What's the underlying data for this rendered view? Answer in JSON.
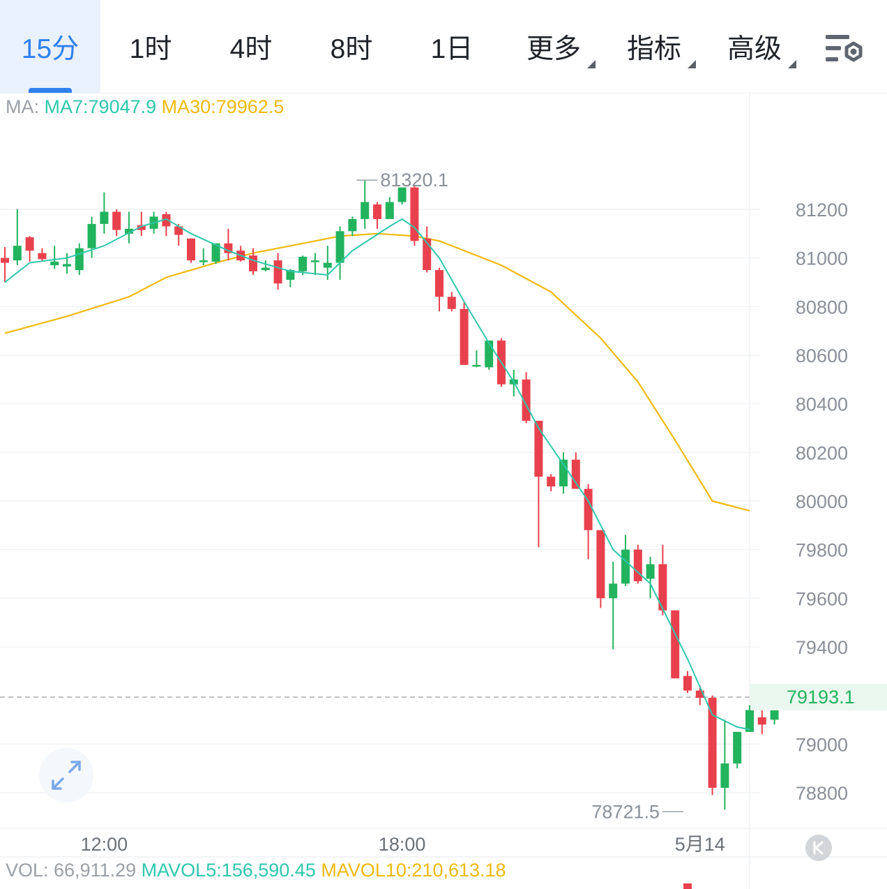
{
  "tabs": [
    {
      "label": "15分",
      "active": true
    },
    {
      "label": "1时"
    },
    {
      "label": "4时"
    },
    {
      "label": "8时"
    },
    {
      "label": "1日"
    },
    {
      "label": "更多",
      "dropdown": true
    },
    {
      "label": "指标",
      "dropdown": true
    },
    {
      "label": "高级",
      "dropdown": true
    }
  ],
  "settings_icon": "chart-settings-icon",
  "legend": {
    "prefix": "MA: ",
    "ma7": "MA7:79047.9",
    "ma30": "MA30:79962.5"
  },
  "volume_legend": {
    "vol": "VOL: 66,911.29",
    "mavol5": "MAVOL5:156,590.45",
    "mavol10": "MAVOL10:210,613.18"
  },
  "current_price": "79193.1",
  "colors": {
    "up": "#22b35e",
    "down": "#e8414d",
    "ma7": "#2ec7ac",
    "ma30": "#f0b90b",
    "accent": "#2f80ed"
  },
  "chart_data": {
    "type": "candlestick",
    "interval": "15分",
    "y_ticks": [
      81200,
      81000,
      80800,
      80600,
      80400,
      80200,
      80000,
      79800,
      79600,
      79400,
      79000,
      78800
    ],
    "ylim": [
      78650,
      81450
    ],
    "x_labels": [
      {
        "index": 8,
        "label": "12:00"
      },
      {
        "index": 32,
        "label": "18:00"
      },
      {
        "index": 56,
        "label": "5月14"
      }
    ],
    "high_marker": {
      "index": 28,
      "value": 81320.1,
      "label": "81320.1"
    },
    "low_marker": {
      "index": 55,
      "value": 78721.5,
      "label": "78721.5"
    },
    "last_price": 79193.1,
    "candles": [
      [
        81000,
        80980,
        81045,
        80900
      ],
      [
        80990,
        81050,
        81200,
        80970
      ],
      [
        81085,
        81030,
        81090,
        80985
      ],
      [
        81020,
        80995,
        81040,
        80985
      ],
      [
        80970,
        80985,
        81050,
        80955
      ],
      [
        80965,
        80975,
        81020,
        80935
      ],
      [
        80950,
        81040,
        81060,
        80930
      ],
      [
        81040,
        81140,
        81170,
        81000
      ],
      [
        81140,
        81190,
        81270,
        81100
      ],
      [
        81190,
        81115,
        81200,
        81090
      ],
      [
        81100,
        81120,
        81190,
        81060
      ],
      [
        81135,
        81115,
        81190,
        81090
      ],
      [
        81120,
        81170,
        81190,
        81100
      ],
      [
        81180,
        81130,
        81190,
        81090
      ],
      [
        81130,
        81095,
        81140,
        81050
      ],
      [
        81080,
        80990,
        81080,
        80980
      ],
      [
        80990,
        80990,
        81040,
        80970
      ],
      [
        80985,
        81060,
        81060,
        80975
      ],
      [
        81060,
        81020,
        81120,
        80990
      ],
      [
        81030,
        80990,
        81050,
        80985
      ],
      [
        81010,
        80945,
        81040,
        80930
      ],
      [
        80950,
        80960,
        80990,
        80945
      ],
      [
        80990,
        80895,
        81020,
        80870
      ],
      [
        80910,
        80950,
        80955,
        80880
      ],
      [
        80945,
        81005,
        81010,
        80930
      ],
      [
        80990,
        80990,
        81020,
        80930
      ],
      [
        80960,
        80980,
        81050,
        80910
      ],
      [
        80980,
        81110,
        81130,
        80910
      ],
      [
        81110,
        81160,
        81170,
        81090
      ],
      [
        81160,
        81230,
        81320,
        81120
      ],
      [
        81220,
        81160,
        81230,
        81120
      ],
      [
        81160,
        81230,
        81250,
        81160
      ],
      [
        81230,
        81290,
        81290,
        81220
      ],
      [
        81290,
        81070,
        81300,
        81050
      ],
      [
        81080,
        80950,
        81130,
        80940
      ],
      [
        80950,
        80840,
        80960,
        80780
      ],
      [
        80840,
        80790,
        80860,
        80780
      ],
      [
        80790,
        80560,
        80820,
        80560
      ],
      [
        80560,
        80560,
        80620,
        80550
      ],
      [
        80550,
        80660,
        80660,
        80540
      ],
      [
        80660,
        80480,
        80670,
        80470
      ],
      [
        80480,
        80500,
        80540,
        80430
      ],
      [
        80500,
        80330,
        80530,
        80320
      ],
      [
        80330,
        80100,
        80330,
        79810
      ],
      [
        80100,
        80060,
        80110,
        80040
      ],
      [
        80060,
        80170,
        80200,
        80030
      ],
      [
        80170,
        80050,
        80200,
        80050
      ],
      [
        80050,
        79880,
        80070,
        79760
      ],
      [
        79880,
        79600,
        79880,
        79560
      ],
      [
        79600,
        79660,
        79750,
        79390
      ],
      [
        79660,
        79800,
        79860,
        79650
      ],
      [
        79800,
        79670,
        79820,
        79660
      ],
      [
        79680,
        79740,
        79770,
        79600
      ],
      [
        79740,
        79550,
        79820,
        79530
      ],
      [
        79550,
        79270,
        79550,
        79280
      ],
      [
        79280,
        79220,
        79300,
        79210
      ],
      [
        79220,
        79190,
        79240,
        79160
      ],
      [
        79190,
        78820,
        79200,
        78790
      ],
      [
        78820,
        78920,
        79100,
        78730
      ],
      [
        78920,
        79050,
        79050,
        78900
      ],
      [
        79050,
        79140,
        79160,
        79050
      ],
      [
        79110,
        79080,
        79170,
        79040
      ],
      [
        79100,
        79180,
        79200,
        79080
      ]
    ],
    "ma7": [
      [
        0,
        80900
      ],
      [
        2,
        80980
      ],
      [
        5,
        81000
      ],
      [
        8,
        81050
      ],
      [
        11,
        81130
      ],
      [
        13,
        81160
      ],
      [
        15,
        81100
      ],
      [
        18,
        81030
      ],
      [
        20,
        80990
      ],
      [
        23,
        80945
      ],
      [
        26,
        80930
      ],
      [
        28,
        81030
      ],
      [
        31,
        81130
      ],
      [
        32,
        81160
      ],
      [
        33,
        81125
      ],
      [
        35,
        81000
      ],
      [
        37,
        80820
      ],
      [
        39,
        80650
      ],
      [
        41,
        80490
      ],
      [
        43,
        80300
      ],
      [
        45,
        80150
      ],
      [
        47,
        80000
      ],
      [
        49,
        79800
      ],
      [
        52,
        79660
      ],
      [
        55,
        79350
      ],
      [
        57,
        79120
      ],
      [
        59,
        79070
      ],
      [
        60,
        79060
      ]
    ],
    "ma30": [
      [
        0,
        80690
      ],
      [
        5,
        80760
      ],
      [
        10,
        80840
      ],
      [
        13,
        80920
      ],
      [
        17,
        80980
      ],
      [
        20,
        81020
      ],
      [
        24,
        81060
      ],
      [
        27,
        81090
      ],
      [
        30,
        81100
      ],
      [
        33,
        81090
      ],
      [
        35,
        81070
      ],
      [
        37,
        81030
      ],
      [
        40,
        80970
      ],
      [
        44,
        80860
      ],
      [
        48,
        80670
      ],
      [
        51,
        80490
      ],
      [
        54,
        80250
      ],
      [
        57,
        80000
      ],
      [
        60,
        79960
      ]
    ]
  }
}
